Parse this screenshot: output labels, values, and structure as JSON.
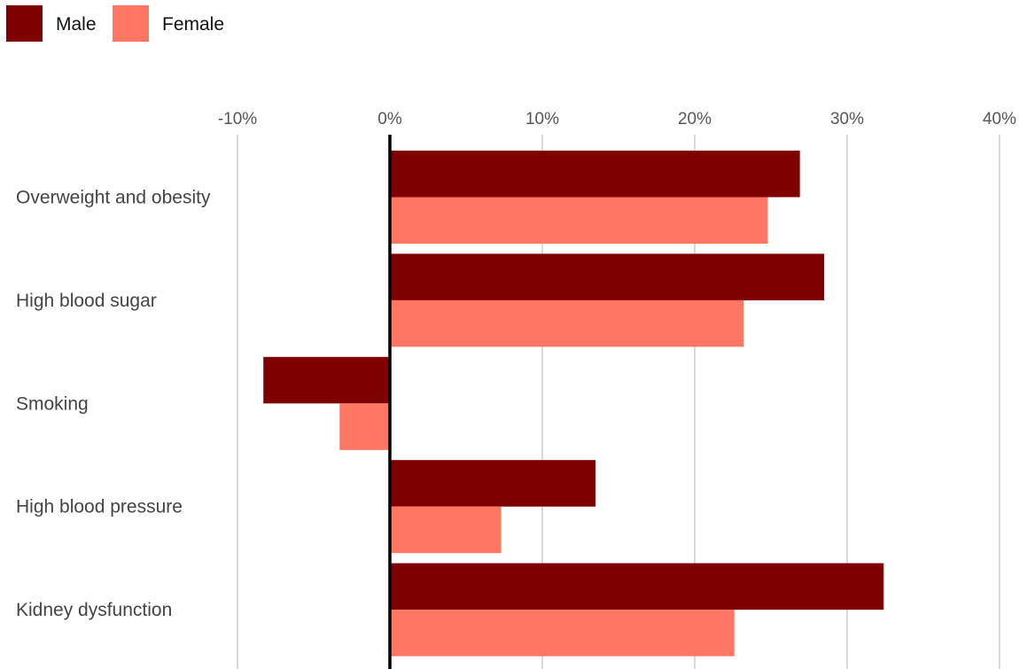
{
  "chart_data": {
    "type": "bar",
    "orientation": "horizontal",
    "categories": [
      "Overweight and obesity",
      "High blood sugar",
      "Smoking",
      "High blood pressure",
      "Kidney dysfunction"
    ],
    "series": [
      {
        "name": "Male",
        "color": "#7f0000",
        "values": [
          26.9,
          28.5,
          -8.3,
          13.5,
          32.4
        ]
      },
      {
        "name": "Female",
        "color": "#ff7663",
        "values": [
          24.8,
          23.2,
          -3.3,
          7.3,
          22.6
        ]
      }
    ],
    "xlim": [
      -10,
      40
    ],
    "xticks": [
      -10,
      0,
      10,
      20,
      30,
      40
    ],
    "tick_labels": [
      "-10%",
      "0%",
      "10%",
      "20%",
      "30%",
      "40%"
    ],
    "x_axis_position": "top",
    "grid": true,
    "legend_position": "top-left",
    "title": "",
    "xlabel": "",
    "ylabel": ""
  }
}
